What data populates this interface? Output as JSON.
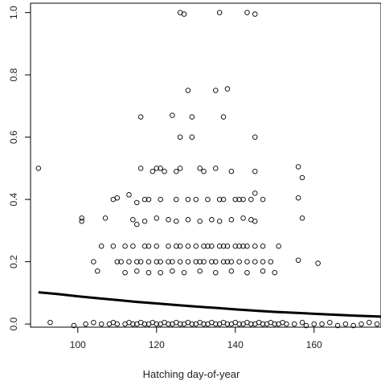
{
  "chart_data": {
    "type": "scatter",
    "title": "",
    "xlabel": "Hatching day-of-year",
    "ylabel": "",
    "xlim": [
      88,
      177
    ],
    "ylim": [
      -0.01,
      1.03
    ],
    "x_ticks": [
      100,
      120,
      140,
      160
    ],
    "y_ticks": [
      0.0,
      0.2,
      0.4,
      0.6,
      0.8,
      1.0
    ],
    "x_tick_labels": [
      "100",
      "120",
      "140",
      "160"
    ],
    "y_tick_labels": [
      "0.0",
      "0.2",
      "0.4",
      "0.6",
      "0.8",
      "1.0"
    ],
    "grid": false,
    "series": [
      {
        "kind": "points",
        "marker": "open-circle",
        "color": "#000000",
        "points": [
          [
            126,
            1.0
          ],
          [
            127,
            0.995
          ],
          [
            136,
            1.0
          ],
          [
            143,
            1.0
          ],
          [
            145,
            0.995
          ],
          [
            138,
            0.755
          ],
          [
            128,
            0.75
          ],
          [
            135,
            0.75
          ],
          [
            124,
            0.67
          ],
          [
            129,
            0.665
          ],
          [
            116,
            0.665
          ],
          [
            137,
            0.665
          ],
          [
            126,
            0.6
          ],
          [
            129,
            0.6
          ],
          [
            145,
            0.6
          ],
          [
            90,
            0.5
          ],
          [
            116,
            0.5
          ],
          [
            119,
            0.49
          ],
          [
            120,
            0.5
          ],
          [
            121,
            0.5
          ],
          [
            122,
            0.49
          ],
          [
            125,
            0.49
          ],
          [
            126,
            0.5
          ],
          [
            131,
            0.5
          ],
          [
            132,
            0.49
          ],
          [
            135,
            0.5
          ],
          [
            139,
            0.49
          ],
          [
            145,
            0.49
          ],
          [
            156,
            0.505
          ],
          [
            157,
            0.47
          ],
          [
            101,
            0.33
          ],
          [
            101,
            0.34
          ],
          [
            109,
            0.4
          ],
          [
            110,
            0.405
          ],
          [
            113,
            0.415
          ],
          [
            115,
            0.39
          ],
          [
            117,
            0.4
          ],
          [
            118,
            0.4
          ],
          [
            121,
            0.4
          ],
          [
            125,
            0.4
          ],
          [
            128,
            0.4
          ],
          [
            130,
            0.4
          ],
          [
            133,
            0.4
          ],
          [
            136,
            0.4
          ],
          [
            137,
            0.4
          ],
          [
            140,
            0.4
          ],
          [
            141,
            0.4
          ],
          [
            142,
            0.4
          ],
          [
            144,
            0.4
          ],
          [
            145,
            0.42
          ],
          [
            147,
            0.4
          ],
          [
            156,
            0.405
          ],
          [
            107,
            0.34
          ],
          [
            114,
            0.335
          ],
          [
            115,
            0.32
          ],
          [
            117,
            0.33
          ],
          [
            120,
            0.34
          ],
          [
            123,
            0.335
          ],
          [
            125,
            0.33
          ],
          [
            128,
            0.335
          ],
          [
            131,
            0.33
          ],
          [
            134,
            0.335
          ],
          [
            136,
            0.33
          ],
          [
            139,
            0.335
          ],
          [
            142,
            0.34
          ],
          [
            144,
            0.335
          ],
          [
            145,
            0.33
          ],
          [
            157,
            0.34
          ],
          [
            106,
            0.25
          ],
          [
            109,
            0.25
          ],
          [
            112,
            0.25
          ],
          [
            114,
            0.25
          ],
          [
            117,
            0.25
          ],
          [
            118,
            0.25
          ],
          [
            120,
            0.25
          ],
          [
            123,
            0.25
          ],
          [
            125,
            0.25
          ],
          [
            126,
            0.25
          ],
          [
            128,
            0.25
          ],
          [
            130,
            0.25
          ],
          [
            132,
            0.25
          ],
          [
            133,
            0.25
          ],
          [
            134,
            0.25
          ],
          [
            136,
            0.25
          ],
          [
            137,
            0.25
          ],
          [
            138,
            0.25
          ],
          [
            140,
            0.25
          ],
          [
            141,
            0.25
          ],
          [
            142,
            0.25
          ],
          [
            143,
            0.25
          ],
          [
            145,
            0.25
          ],
          [
            147,
            0.25
          ],
          [
            151,
            0.25
          ],
          [
            104,
            0.2
          ],
          [
            110,
            0.2
          ],
          [
            111,
            0.2
          ],
          [
            113,
            0.2
          ],
          [
            115,
            0.2
          ],
          [
            116,
            0.2
          ],
          [
            118,
            0.2
          ],
          [
            120,
            0.2
          ],
          [
            121,
            0.2
          ],
          [
            123,
            0.2
          ],
          [
            124,
            0.2
          ],
          [
            126,
            0.2
          ],
          [
            128,
            0.2
          ],
          [
            130,
            0.2
          ],
          [
            131,
            0.2
          ],
          [
            132,
            0.2
          ],
          [
            134,
            0.2
          ],
          [
            135,
            0.2
          ],
          [
            137,
            0.2
          ],
          [
            138,
            0.2
          ],
          [
            139,
            0.2
          ],
          [
            141,
            0.2
          ],
          [
            143,
            0.2
          ],
          [
            145,
            0.2
          ],
          [
            147,
            0.2
          ],
          [
            149,
            0.2
          ],
          [
            156,
            0.205
          ],
          [
            161,
            0.195
          ],
          [
            105,
            0.17
          ],
          [
            112,
            0.165
          ],
          [
            115,
            0.17
          ],
          [
            118,
            0.165
          ],
          [
            121,
            0.165
          ],
          [
            124,
            0.17
          ],
          [
            127,
            0.165
          ],
          [
            131,
            0.17
          ],
          [
            135,
            0.165
          ],
          [
            139,
            0.17
          ],
          [
            143,
            0.165
          ],
          [
            147,
            0.17
          ],
          [
            150,
            0.165
          ],
          [
            93,
            0.005
          ],
          [
            99,
            -0.005
          ],
          [
            102,
            0.0
          ],
          [
            104,
            0.005
          ],
          [
            106,
            0.0
          ],
          [
            108,
            0.0
          ],
          [
            109,
            0.005
          ],
          [
            110,
            0.0
          ],
          [
            112,
            0.0
          ],
          [
            113,
            0.005
          ],
          [
            114,
            0.0
          ],
          [
            115,
            0.0
          ],
          [
            116,
            0.005
          ],
          [
            117,
            0.0
          ],
          [
            118,
            0.0
          ],
          [
            119,
            0.005
          ],
          [
            120,
            0.0
          ],
          [
            121,
            0.0
          ],
          [
            122,
            0.005
          ],
          [
            123,
            0.0
          ],
          [
            124,
            0.0
          ],
          [
            125,
            0.005
          ],
          [
            126,
            0.0
          ],
          [
            127,
            0.0
          ],
          [
            128,
            0.005
          ],
          [
            129,
            0.0
          ],
          [
            130,
            0.0
          ],
          [
            131,
            0.005
          ],
          [
            132,
            0.0
          ],
          [
            133,
            0.0
          ],
          [
            134,
            0.005
          ],
          [
            135,
            0.0
          ],
          [
            136,
            0.0
          ],
          [
            137,
            0.005
          ],
          [
            138,
            0.0
          ],
          [
            139,
            0.0
          ],
          [
            140,
            0.005
          ],
          [
            141,
            0.0
          ],
          [
            142,
            0.0
          ],
          [
            143,
            0.005
          ],
          [
            144,
            0.0
          ],
          [
            145,
            0.0
          ],
          [
            146,
            0.005
          ],
          [
            147,
            0.0
          ],
          [
            148,
            0.0
          ],
          [
            149,
            0.005
          ],
          [
            150,
            0.0
          ],
          [
            151,
            0.0
          ],
          [
            152,
            0.005
          ],
          [
            153,
            0.0
          ],
          [
            155,
            0.0
          ],
          [
            157,
            0.005
          ],
          [
            158,
            -0.005
          ],
          [
            160,
            0.0
          ],
          [
            162,
            0.0
          ],
          [
            164,
            0.005
          ],
          [
            166,
            -0.005
          ],
          [
            168,
            0.0
          ],
          [
            170,
            -0.005
          ],
          [
            172,
            0.0
          ],
          [
            174,
            0.005
          ],
          [
            176,
            0.0
          ]
        ]
      },
      {
        "kind": "line",
        "color": "#000000",
        "points": [
          [
            90,
            0.102
          ],
          [
            95,
            0.096
          ],
          [
            100,
            0.089
          ],
          [
            105,
            0.083
          ],
          [
            110,
            0.077
          ],
          [
            115,
            0.071
          ],
          [
            120,
            0.066
          ],
          [
            125,
            0.061
          ],
          [
            130,
            0.056
          ],
          [
            135,
            0.052
          ],
          [
            140,
            0.047
          ],
          [
            145,
            0.043
          ],
          [
            150,
            0.039
          ],
          [
            155,
            0.036
          ],
          [
            160,
            0.033
          ],
          [
            165,
            0.03
          ],
          [
            170,
            0.027
          ],
          [
            175,
            0.025
          ],
          [
            177,
            0.024
          ]
        ]
      }
    ]
  }
}
